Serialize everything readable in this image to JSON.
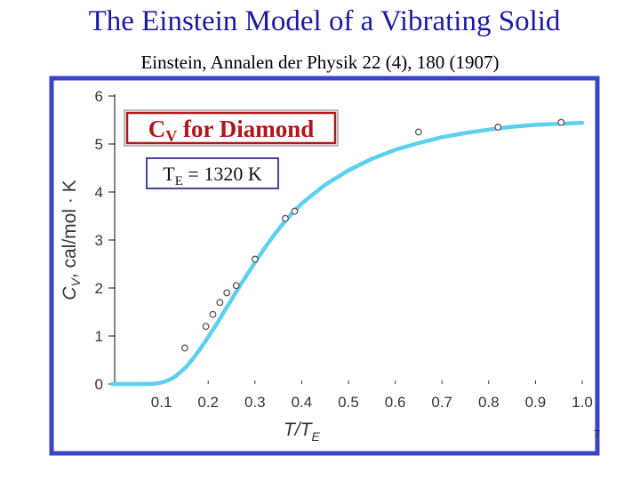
{
  "slide": {
    "title": "The Einstein Model of a Vibrating Solid",
    "subtitle": "Einstein, Annalen der Physik 22 (4), 180 (1907)",
    "page_number": "7"
  },
  "colors": {
    "title": "#1a1aa6",
    "frame": "#3b43c9",
    "curve": "#5bd0ef",
    "points": "#555555",
    "label_box": "#b0161a",
    "label_text": "#b0161a",
    "te_box": "#2c2f9a"
  },
  "chart_data": {
    "type": "scatter",
    "xlabel": "T/TE",
    "ylabel": "CV, cal/mol · K",
    "xlim": [
      0,
      1.0
    ],
    "ylim": [
      0,
      6
    ],
    "xticks": [
      "0.1",
      "0.2",
      "0.3",
      "0.4",
      "0.5",
      "0.6",
      "0.7",
      "0.8",
      "0.9",
      "1.0"
    ],
    "yticks": [
      "0",
      "1",
      "2",
      "3",
      "4",
      "5",
      "6"
    ],
    "series": [
      {
        "kind": "curve",
        "x": [
          0.0,
          0.06,
          0.08,
          0.09,
          0.1,
          0.11,
          0.12,
          0.13,
          0.14,
          0.15,
          0.16,
          0.17,
          0.18,
          0.19,
          0.2,
          0.21,
          0.22,
          0.23,
          0.24,
          0.25,
          0.26,
          0.27,
          0.28,
          0.29,
          0.3,
          0.32,
          0.34,
          0.36,
          0.38,
          0.4,
          0.45,
          0.5,
          0.55,
          0.6,
          0.65,
          0.7,
          0.75,
          0.8,
          0.85,
          0.9,
          0.95,
          1.0
        ],
        "y": [
          0.0,
          0.0,
          0.004,
          0.012,
          0.03,
          0.06,
          0.1,
          0.16,
          0.24,
          0.33,
          0.44,
          0.56,
          0.69,
          0.83,
          0.98,
          1.13,
          1.28,
          1.44,
          1.6,
          1.76,
          1.92,
          2.08,
          2.23,
          2.38,
          2.53,
          2.82,
          3.09,
          3.34,
          3.56,
          3.76,
          4.15,
          4.45,
          4.69,
          4.88,
          5.02,
          5.14,
          5.23,
          5.3,
          5.36,
          5.4,
          5.42,
          5.44
        ]
      },
      {
        "kind": "points",
        "x": [
          0.15,
          0.195,
          0.21,
          0.225,
          0.24,
          0.26,
          0.3,
          0.365,
          0.385,
          0.65,
          0.82,
          0.955
        ],
        "y": [
          0.75,
          1.2,
          1.45,
          1.7,
          1.9,
          2.05,
          2.6,
          3.45,
          3.6,
          5.25,
          5.35,
          5.45
        ]
      }
    ],
    "annotations": [
      {
        "text_main": "C",
        "text_sub": "V",
        "text_rest": " for Diamond"
      },
      {
        "text_main": "T",
        "text_sub": "E",
        "text_rest": " = 1320 K"
      }
    ]
  }
}
